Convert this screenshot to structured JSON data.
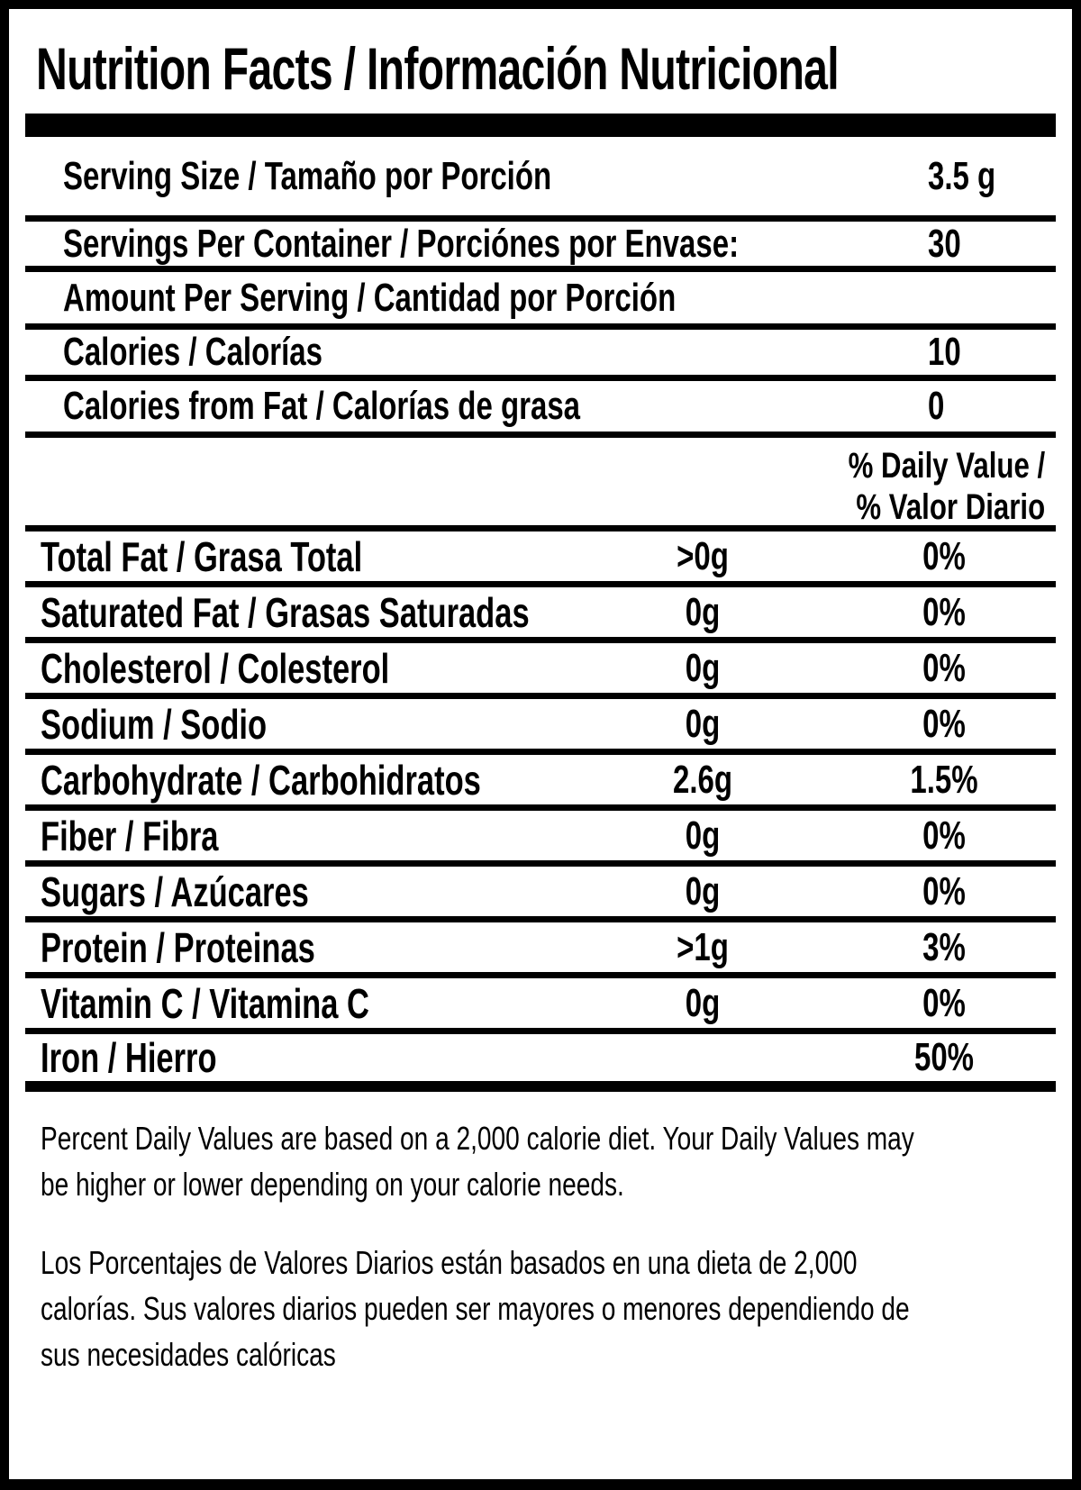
{
  "title": "Nutrition Facts / Información Nutricional",
  "colors": {
    "ink": "#000000",
    "background": "#ffffff"
  },
  "serving_section": [
    {
      "label": "Serving Size / Tamaño por Porción",
      "value": "3.5 g"
    },
    {
      "label": "Servings Per Container / Porciónes por Envase:",
      "value": "30"
    },
    {
      "label": "Amount Per Serving / Cantidad por Porción",
      "value": ""
    },
    {
      "label": "Calories / Calorías",
      "value": "10"
    },
    {
      "label": "Calories from Fat / Calorías de grasa",
      "value": "0"
    }
  ],
  "daily_value_header": "% Daily Value /\n% Valor Diario",
  "nutrients": [
    {
      "label": "Total Fat / Grasa Total",
      "amount": ">0g",
      "percent": "0%"
    },
    {
      "label": "Saturated Fat / Grasas Saturadas",
      "amount": "0g",
      "percent": "0%"
    },
    {
      "label": "Cholesterol / Colesterol",
      "amount": "0g",
      "percent": "0%"
    },
    {
      "label": "Sodium / Sodio",
      "amount": "0g",
      "percent": "0%"
    },
    {
      "label": "Carbohydrate / Carbohidratos",
      "amount": "2.6g",
      "percent": "1.5%"
    },
    {
      "label": "Fiber / Fibra",
      "amount": "0g",
      "percent": "0%"
    },
    {
      "label": "Sugars / Azúcares",
      "amount": "0g",
      "percent": "0%"
    },
    {
      "label": "Protein / Proteinas",
      "amount": ">1g",
      "percent": "3%"
    },
    {
      "label": "Vitamin C / Vitamina C",
      "amount": "0g",
      "percent": "0%"
    },
    {
      "label": "Iron / Hierro",
      "amount": "",
      "percent": "50%"
    }
  ],
  "footnotes": {
    "english": "Percent Daily Values are based on a 2,000 calorie diet. Your Daily Values may\nbe higher or lower depending on your calorie needs.",
    "spanish": "Los Porcentajes de Valores Diarios están basados en una dieta de 2,000\ncalorías. Sus valores diarios pueden ser mayores o menores dependiendo de\nsus necesidades calóricas"
  }
}
